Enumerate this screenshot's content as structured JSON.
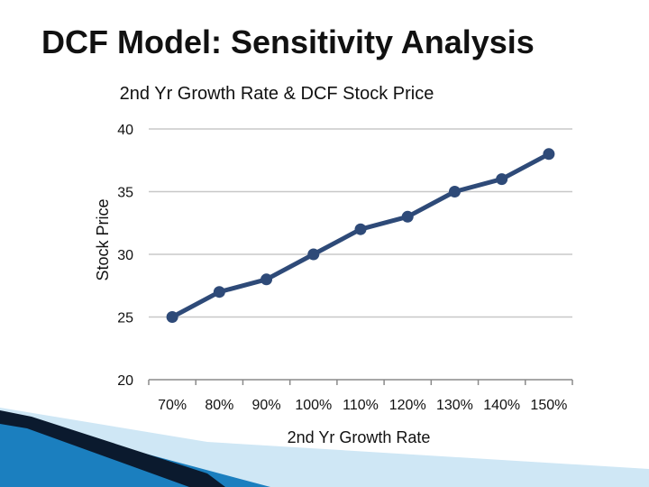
{
  "slide": {
    "title": "DCF Model: Sensitivity Analysis"
  },
  "colors": {
    "line": "#2e4a78",
    "grid": "#c8c8c8",
    "text": "#111111",
    "accent_dark": "#0b1a2e",
    "accent_blue": "#1b7fbf",
    "accent_light": "#cfe7f5"
  },
  "chart_data": {
    "type": "line",
    "title": "2nd Yr Growth Rate & DCF Stock Price",
    "xlabel": "2nd Yr Growth Rate",
    "ylabel": "Stock Price",
    "categories": [
      "70%",
      "80%",
      "90%",
      "100%",
      "110%",
      "120%",
      "130%",
      "140%",
      "150%"
    ],
    "series": [
      {
        "values": [
          25,
          27,
          28,
          30,
          32,
          33,
          35,
          36,
          38
        ]
      }
    ],
    "ylim": [
      20,
      40
    ],
    "yticks": [
      20,
      25,
      30,
      35,
      40
    ],
    "grid": true,
    "legend": "none",
    "markers": true
  }
}
